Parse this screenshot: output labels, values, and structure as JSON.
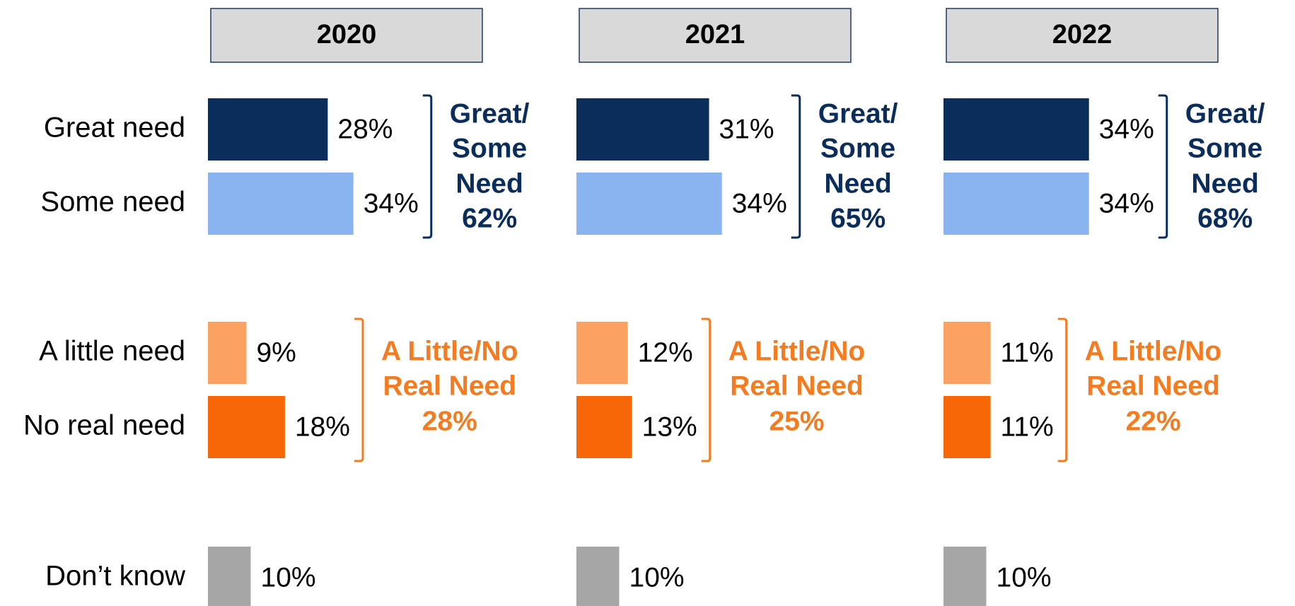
{
  "chart_data": {
    "type": "bar",
    "categories": [
      "Great need",
      "Some need",
      "A little need",
      "No real need",
      "Don’t know"
    ],
    "colors": [
      "#0b2d5b",
      "#8ab4f0",
      "#fba262",
      "#f76707",
      "#a6a6a6"
    ],
    "series": [
      {
        "name": "2020",
        "values": [
          28,
          34,
          9,
          18,
          10
        ],
        "value_labels": [
          "28%",
          "34%",
          "9%",
          "18%",
          "10%"
        ],
        "groups": [
          {
            "lines": [
              "Great/",
              "Some",
              "Need"
            ],
            "value": 62,
            "value_label": "62%",
            "color": "#0b2d5b"
          },
          {
            "lines": [
              "A Little/No",
              "Real Need"
            ],
            "value": 28,
            "value_label": "28%",
            "color": "#f47b20"
          }
        ]
      },
      {
        "name": "2021",
        "values": [
          31,
          34,
          12,
          13,
          10
        ],
        "value_labels": [
          "31%",
          "34%",
          "12%",
          "13%",
          "10%"
        ],
        "groups": [
          {
            "lines": [
              "Great/",
              "Some",
              "Need"
            ],
            "value": 65,
            "value_label": "65%",
            "color": "#0b2d5b"
          },
          {
            "lines": [
              "A Little/No",
              "Real Need"
            ],
            "value": 25,
            "value_label": "25%",
            "color": "#f47b20"
          }
        ]
      },
      {
        "name": "2022",
        "values": [
          34,
          34,
          11,
          11,
          10
        ],
        "value_labels": [
          "34%",
          "34%",
          "11%",
          "11%",
          "10%"
        ],
        "groups": [
          {
            "lines": [
              "Great/",
              "Some",
              "Need"
            ],
            "value": 68,
            "value_label": "68%",
            "color": "#0b2d5b"
          },
          {
            "lines": [
              "A Little/No",
              "Real Need"
            ],
            "value": 22,
            "value_label": "22%",
            "color": "#f47b20"
          }
        ]
      }
    ]
  }
}
